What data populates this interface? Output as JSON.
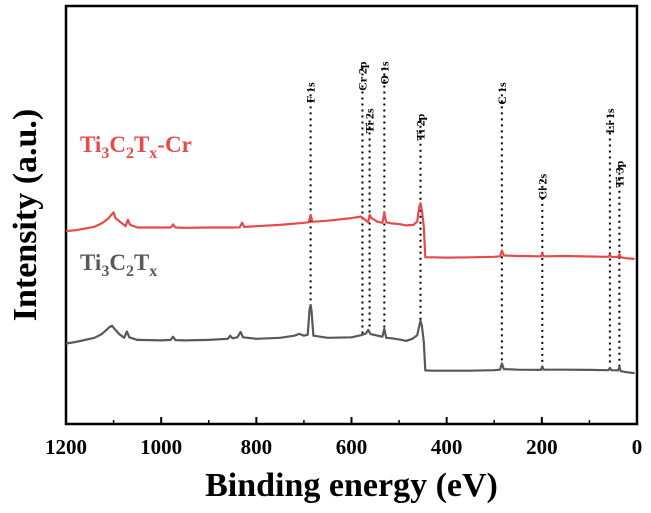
{
  "chart_data": {
    "type": "line",
    "title": "",
    "xlabel": "Binding energy (eV)",
    "ylabel": "Intensity (a.u.)",
    "xlim": [
      1200,
      0
    ],
    "x_reversed": true,
    "xticks": [
      1200,
      1000,
      800,
      600,
      400,
      200,
      0
    ],
    "y_ticks_shown": false,
    "series": [
      {
        "name": "Ti3C2Tx-Cr",
        "label_parts": [
          {
            "t": "Ti",
            "sub": false
          },
          {
            "t": "3",
            "sub": true
          },
          {
            "t": "C",
            "sub": false
          },
          {
            "t": "2",
            "sub": true
          },
          {
            "t": "T",
            "sub": false
          },
          {
            "t": "x",
            "sub": true
          },
          {
            "t": "-Cr",
            "sub": false
          }
        ],
        "color": "#e84a4a",
        "points": [
          [
            1200,
            0.862
          ],
          [
            1180,
            0.858
          ],
          [
            1160,
            0.852
          ],
          [
            1140,
            0.845
          ],
          [
            1125,
            0.832
          ],
          [
            1112,
            0.815
          ],
          [
            1105,
            0.8
          ],
          [
            1100,
            0.79
          ],
          [
            1096,
            0.812
          ],
          [
            1085,
            0.828
          ],
          [
            1075,
            0.843
          ],
          [
            1070,
            0.818
          ],
          [
            1065,
            0.838
          ],
          [
            1050,
            0.848
          ],
          [
            1000,
            0.848
          ],
          [
            980,
            0.848
          ],
          [
            975,
            0.836
          ],
          [
            970,
            0.848
          ],
          [
            950,
            0.849
          ],
          [
            900,
            0.848
          ],
          [
            850,
            0.848
          ],
          [
            835,
            0.847
          ],
          [
            830,
            0.83
          ],
          [
            825,
            0.846
          ],
          [
            800,
            0.843
          ],
          [
            750,
            0.838
          ],
          [
            700,
            0.83
          ],
          [
            690,
            0.828
          ],
          [
            686,
            0.8
          ],
          [
            682,
            0.826
          ],
          [
            650,
            0.822
          ],
          [
            600,
            0.812
          ],
          [
            580,
            0.806
          ],
          [
            570,
            0.82
          ],
          [
            565,
            0.828
          ],
          [
            562,
            0.8
          ],
          [
            558,
            0.812
          ],
          [
            545,
            0.826
          ],
          [
            535,
            0.83
          ],
          [
            531,
            0.792
          ],
          [
            527,
            0.828
          ],
          [
            515,
            0.832
          ],
          [
            500,
            0.835
          ],
          [
            485,
            0.84
          ],
          [
            470,
            0.838
          ],
          [
            462,
            0.825
          ],
          [
            458,
            0.772
          ],
          [
            455,
            0.755
          ],
          [
            452,
            0.782
          ],
          [
            448,
            0.845
          ],
          [
            445,
            0.962
          ],
          [
            430,
            0.962
          ],
          [
            400,
            0.963
          ],
          [
            350,
            0.962
          ],
          [
            300,
            0.96
          ],
          [
            288,
            0.958
          ],
          [
            284,
            0.936
          ],
          [
            280,
            0.955
          ],
          [
            250,
            0.957
          ],
          [
            202,
            0.958
          ],
          [
            199,
            0.947
          ],
          [
            196,
            0.958
          ],
          [
            150,
            0.957
          ],
          [
            100,
            0.959
          ],
          [
            60,
            0.96
          ],
          [
            57,
            0.952
          ],
          [
            54,
            0.96
          ],
          [
            40,
            0.961
          ],
          [
            37,
            0.95
          ],
          [
            34,
            0.962
          ],
          [
            20,
            0.966
          ],
          [
            5,
            0.968
          ]
        ]
      },
      {
        "name": "Ti3C2Tx",
        "label_parts": [
          {
            "t": "Ti",
            "sub": false
          },
          {
            "t": "3",
            "sub": true
          },
          {
            "t": "C",
            "sub": false
          },
          {
            "t": "2",
            "sub": true
          },
          {
            "t": "T",
            "sub": false
          },
          {
            "t": "x",
            "sub": true
          }
        ],
        "color": "#595959",
        "points": [
          [
            1200,
            1.292
          ],
          [
            1180,
            1.286
          ],
          [
            1160,
            1.278
          ],
          [
            1140,
            1.27
          ],
          [
            1125,
            1.256
          ],
          [
            1115,
            1.24
          ],
          [
            1108,
            1.228
          ],
          [
            1103,
            1.224
          ],
          [
            1098,
            1.236
          ],
          [
            1088,
            1.256
          ],
          [
            1078,
            1.27
          ],
          [
            1072,
            1.246
          ],
          [
            1067,
            1.268
          ],
          [
            1050,
            1.278
          ],
          [
            1000,
            1.28
          ],
          [
            980,
            1.278
          ],
          [
            975,
            1.266
          ],
          [
            970,
            1.279
          ],
          [
            950,
            1.28
          ],
          [
            900,
            1.278
          ],
          [
            860,
            1.274
          ],
          [
            855,
            1.262
          ],
          [
            850,
            1.272
          ],
          [
            840,
            1.268
          ],
          [
            833,
            1.248
          ],
          [
            828,
            1.268
          ],
          [
            800,
            1.274
          ],
          [
            750,
            1.27
          ],
          [
            720,
            1.262
          ],
          [
            710,
            1.255
          ],
          [
            700,
            1.262
          ],
          [
            692,
            1.258
          ],
          [
            688,
            1.16
          ],
          [
            686,
            1.145
          ],
          [
            684,
            1.165
          ],
          [
            680,
            1.262
          ],
          [
            650,
            1.27
          ],
          [
            600,
            1.268
          ],
          [
            580,
            1.26
          ],
          [
            570,
            1.254
          ],
          [
            565,
            1.24
          ],
          [
            560,
            1.256
          ],
          [
            545,
            1.262
          ],
          [
            535,
            1.266
          ],
          [
            531,
            1.236
          ],
          [
            527,
            1.27
          ],
          [
            515,
            1.272
          ],
          [
            500,
            1.276
          ],
          [
            485,
            1.282
          ],
          [
            472,
            1.274
          ],
          [
            462,
            1.26
          ],
          [
            458,
            1.228
          ],
          [
            455,
            1.205
          ],
          [
            452,
            1.225
          ],
          [
            448,
            1.285
          ],
          [
            445,
            1.395
          ],
          [
            430,
            1.396
          ],
          [
            400,
            1.396
          ],
          [
            350,
            1.396
          ],
          [
            300,
            1.394
          ],
          [
            288,
            1.392
          ],
          [
            284,
            1.368
          ],
          [
            280,
            1.39
          ],
          [
            250,
            1.392
          ],
          [
            202,
            1.393
          ],
          [
            199,
            1.38
          ],
          [
            196,
            1.392
          ],
          [
            150,
            1.392
          ],
          [
            100,
            1.393
          ],
          [
            60,
            1.394
          ],
          [
            57,
            1.385
          ],
          [
            54,
            1.394
          ],
          [
            40,
            1.395
          ],
          [
            37,
            1.382
          ],
          [
            34,
            1.398
          ],
          [
            20,
            1.402
          ],
          [
            5,
            1.405
          ]
        ]
      }
    ],
    "peak_annotations": [
      {
        "label": "F 1s",
        "x": 686,
        "y_top": 0.3,
        "y_bottom": 1.15
      },
      {
        "label": "Cr 2p",
        "x": 577,
        "y_top": 0.22,
        "y_bottom": 1.26
      },
      {
        "label": "Ti 2s",
        "x": 562,
        "y_top": 0.4,
        "y_bottom": 1.24
      },
      {
        "label": "O 1s",
        "x": 531,
        "y_top": 0.22,
        "y_bottom": 1.24
      },
      {
        "label": "Ti 2p",
        "x": 455,
        "y_top": 0.42,
        "y_bottom": 1.21
      },
      {
        "label": "C 1s",
        "x": 284,
        "y_top": 0.3,
        "y_bottom": 1.37
      },
      {
        "label": "Cl 2s",
        "x": 199,
        "y_top": 0.65,
        "y_bottom": 1.38
      },
      {
        "label": "Li 1s",
        "x": 57,
        "y_top": 0.4,
        "y_bottom": 1.38
      },
      {
        "label": "Ti 3p",
        "x": 37,
        "y_top": 0.6,
        "y_bottom": 1.38
      }
    ]
  }
}
